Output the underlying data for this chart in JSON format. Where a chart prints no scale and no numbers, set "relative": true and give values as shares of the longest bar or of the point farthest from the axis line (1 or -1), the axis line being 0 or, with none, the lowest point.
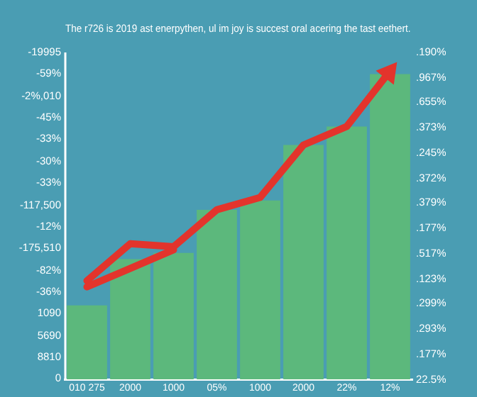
{
  "chart_data": {
    "type": "bar",
    "title": "The r726 is 2019 ast enerpythen, ul im joy is succest oral acering the tast eethert.",
    "categories": [
      "010 275",
      "2000",
      "1000",
      "05%",
      "1000",
      "2000",
      "22%",
      "12%"
    ],
    "relative": true,
    "series": [
      {
        "color": "#5cb87c",
        "values": [
          0.24,
          0.39,
          0.41,
          0.55,
          0.58,
          0.76,
          0.82,
          0.99
        ]
      },
      {
        "type": "line",
        "color": "#e3342c",
        "values": [
          0.3,
          0.36,
          0.42,
          null,
          null,
          null,
          null,
          null
        ]
      },
      {
        "type": "line",
        "color": "#e3342c",
        "values": [
          0.32,
          0.44,
          0.43,
          0.55,
          0.59,
          0.76,
          0.82,
          1
        ]
      }
    ],
    "annotations": [
      "-19995",
      "-59%",
      "-2%,010",
      "-45%",
      "-33%",
      "-30%",
      "-33%",
      "-117,500",
      "-12%",
      "-175,510",
      "-82%",
      "-36%",
      "1090",
      "5690",
      "8810",
      "0",
      ".190%",
      ".967%",
      ".655%",
      ".373%",
      ".245%",
      ".372%",
      ".379%",
      ".177%",
      ".517%",
      ".123%",
      ".299%",
      ".293%",
      ".177%",
      "22.5%"
    ],
    "grid": false,
    "legend": false,
    "marker": "none"
  }
}
